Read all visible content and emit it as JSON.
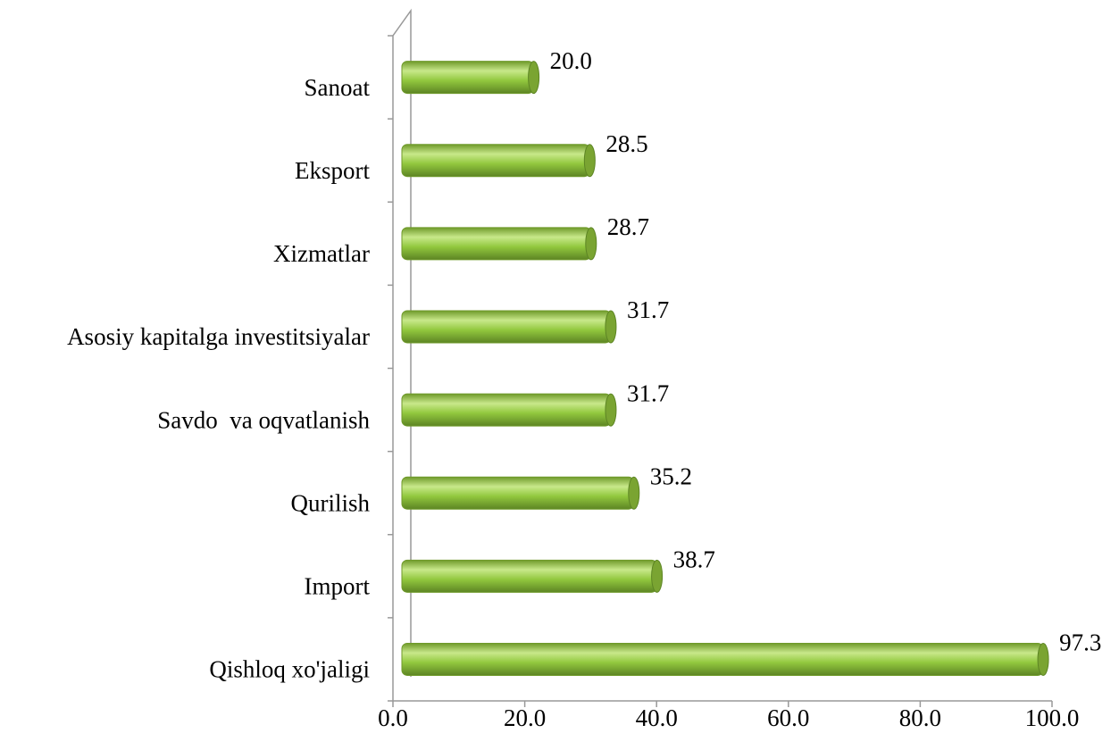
{
  "chart_data": {
    "type": "bar",
    "orientation": "horizontal",
    "categories": [
      "Sanoat",
      "Eksport",
      "Xizmatlar",
      "Asosiy kapitalga investitsiyalar",
      "Savdo  va oqvatlanish",
      "Qurilish",
      "Import",
      "Qishloq xo'jaligi"
    ],
    "values": [
      20.0,
      28.5,
      28.7,
      31.7,
      31.7,
      35.2,
      38.7,
      97.3
    ],
    "value_labels": [
      "20.0",
      "28.5",
      "28.7",
      "31.7",
      "31.7",
      "35.2",
      "38.7",
      "97.3"
    ],
    "color": "#92c83e",
    "xlim": [
      0,
      100
    ],
    "xticks": [
      {
        "value": 0,
        "label": "0.0"
      },
      {
        "value": 20,
        "label": "20.0"
      },
      {
        "value": 40,
        "label": "40.0"
      },
      {
        "value": 60,
        "label": "60.0"
      },
      {
        "value": 80,
        "label": "80.0"
      },
      {
        "value": 100,
        "label": "100.0"
      }
    ],
    "grid": false
  }
}
